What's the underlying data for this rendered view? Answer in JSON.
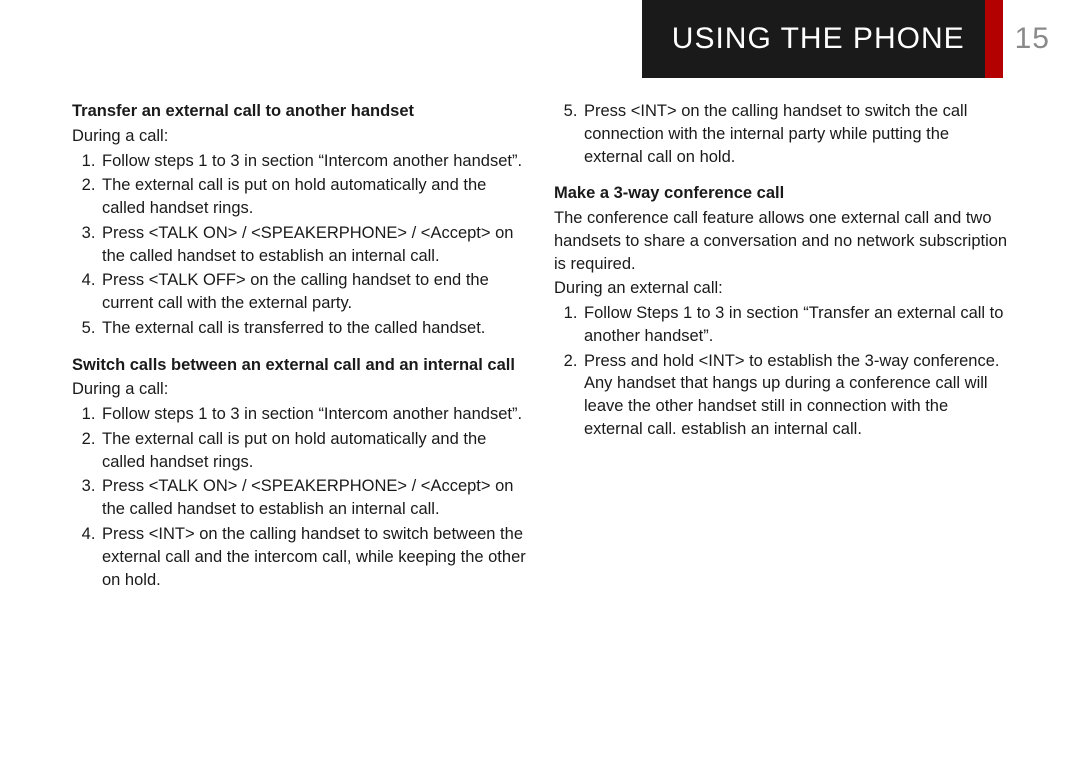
{
  "header": {
    "title": "USING THE PHONE",
    "page_number": "15",
    "title_bg": "#1a1a1a",
    "title_color": "#ffffff",
    "accent_bg": "#b30000",
    "page_num_color": "#8a8a8a"
  },
  "col1": {
    "s1": {
      "title": "Transfer an external call to another handset",
      "intro": "During a call:",
      "items": [
        "Follow steps 1 to 3 in section “Intercom another handset”.",
        "The external call is put on hold automatically and the called handset rings.",
        "Press <TALK ON> / <SPEAKERPHONE> / <Accept> on the called handset to establish an internal call.",
        "Press <TALK OFF> on the calling handset to end the current call with the external party.",
        "The external call is transferred to the called handset."
      ]
    },
    "s2": {
      "title": "Switch calls between an external call and an internal call",
      "intro": "During a call:",
      "items": [
        "Follow steps 1 to 3 in section “Intercom another handset”.",
        "The external call is put on hold automatically and the called handset rings.",
        "Press <TALK ON> / <SPEAKERPHONE> / <Accept> on the called handset to establish an internal call.",
        "Press <INT> on the calling handset to switch between the external call and the intercom call, while keeping the other on hold."
      ]
    }
  },
  "col2": {
    "s2_continued": {
      "start": 5,
      "items": [
        "Press <INT> on the calling handset to switch the call connection with the internal party while putting the external call on hold."
      ]
    },
    "s3": {
      "title": "Make a 3-way conference call",
      "body": "The conference call feature allows one external call and two handsets to share a conversation and no network subscription is required.",
      "intro": "During an external call:",
      "items": [
        "Follow Steps 1 to 3 in section “Transfer an external call to another handset”.",
        "Press and hold <INT> to establish the 3-way conference. Any handset that hangs up during a conference call will leave the other handset still in connection with the external call. establish an internal call."
      ]
    }
  }
}
